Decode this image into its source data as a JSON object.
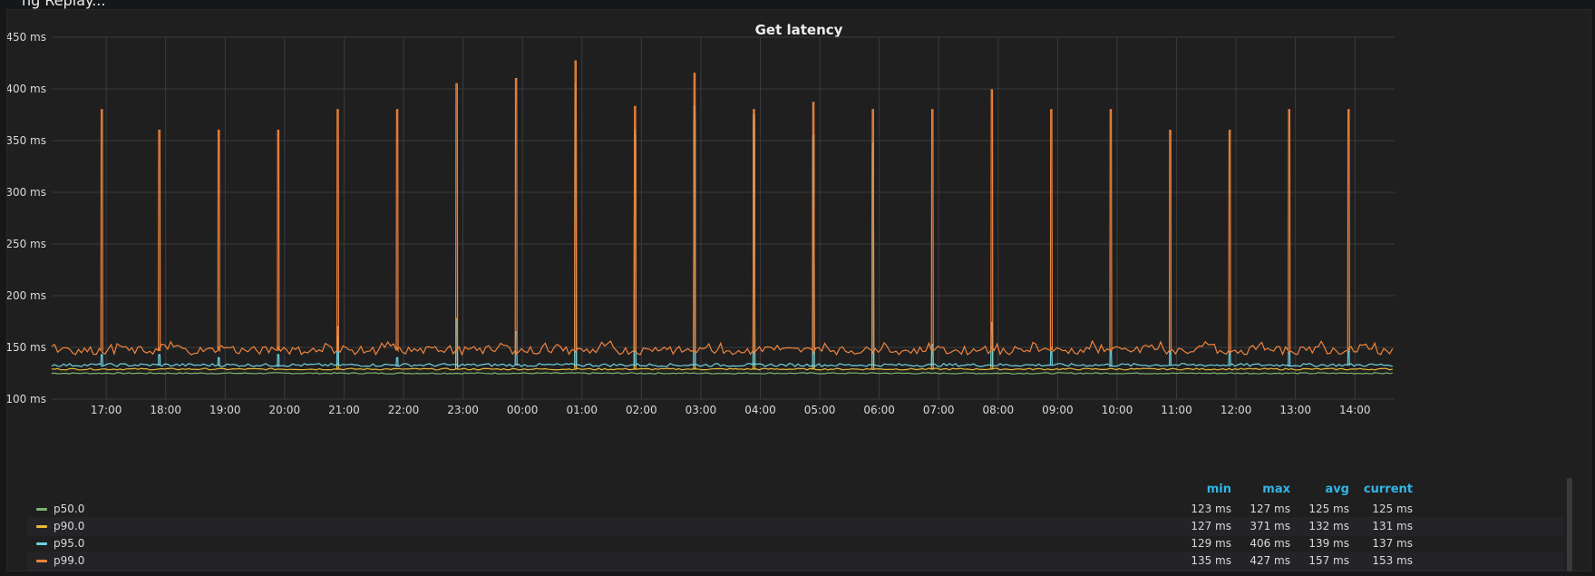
{
  "header": {
    "truncated_title": "ng Replay..."
  },
  "panel": {
    "title": "Get latency"
  },
  "chart_data": {
    "type": "line",
    "title": "Get latency",
    "ylabel": "",
    "xlabel": "",
    "ylim": [
      100,
      450
    ],
    "y_ticks": [
      "100 ms",
      "150 ms",
      "200 ms",
      "250 ms",
      "300 ms",
      "350 ms",
      "400 ms",
      "450 ms"
    ],
    "x_ticks": [
      "17:00",
      "18:00",
      "19:00",
      "20:00",
      "21:00",
      "22:00",
      "23:00",
      "00:00",
      "01:00",
      "02:00",
      "03:00",
      "04:00",
      "05:00",
      "06:00",
      "07:00",
      "08:00",
      "09:00",
      "10:00",
      "11:00",
      "12:00",
      "13:00",
      "14:00"
    ],
    "x_range": [
      "16:05",
      "14:40"
    ],
    "grid": true,
    "series": [
      {
        "name": "p50.0",
        "color": "#7eb26d",
        "baseline": 125
      },
      {
        "name": "p90.0",
        "color": "#eab839",
        "baseline": 129
      },
      {
        "name": "p95.0",
        "color": "#6ed0e0",
        "baseline": 133
      },
      {
        "name": "p99.0",
        "color": "#ef843c",
        "baseline": 147
      }
    ],
    "spikes": [
      {
        "time": "16:55",
        "p99": 380,
        "p95": 143
      },
      {
        "time": "17:53",
        "p99": 360,
        "p95": 143
      },
      {
        "time": "18:53",
        "p99": 360,
        "p95": 140
      },
      {
        "time": "19:53",
        "p99": 360,
        "p95": 143
      },
      {
        "time": "20:53",
        "p99": 380,
        "p95": 170,
        "p90": 160
      },
      {
        "time": "21:53",
        "p99": 380,
        "p95": 140
      },
      {
        "time": "22:53",
        "p99": 405,
        "p95": 175,
        "p90": 178
      },
      {
        "time": "23:53",
        "p99": 410,
        "p95": 165
      },
      {
        "time": "00:53",
        "p99": 427,
        "p95": 406,
        "p90": 371
      },
      {
        "time": "01:53",
        "p99": 383,
        "p95": 360,
        "p90": 355
      },
      {
        "time": "02:53",
        "p99": 415,
        "p95": 383,
        "p90": 371
      },
      {
        "time": "03:53",
        "p99": 380,
        "p95": 375,
        "p90": 370
      },
      {
        "time": "04:53",
        "p99": 387,
        "p95": 355,
        "p90": 350
      },
      {
        "time": "05:53",
        "p99": 380,
        "p95": 348,
        "p90": 345
      },
      {
        "time": "06:53",
        "p99": 380,
        "p95": 153,
        "p90": 148
      },
      {
        "time": "07:53",
        "p99": 399,
        "p95": 174,
        "p90": 172
      },
      {
        "time": "08:53",
        "p99": 380,
        "p95": 146
      },
      {
        "time": "09:53",
        "p99": 380,
        "p95": 146
      },
      {
        "time": "10:53",
        "p99": 360,
        "p95": 146
      },
      {
        "time": "11:53",
        "p99": 360,
        "p95": 146
      },
      {
        "time": "12:53",
        "p99": 380,
        "p95": 146
      },
      {
        "time": "13:53",
        "p99": 380,
        "p95": 146
      }
    ]
  },
  "legend": {
    "headers": {
      "min": "min",
      "max": "max",
      "avg": "avg",
      "current": "current"
    },
    "rows": [
      {
        "name": "p50.0",
        "color": "#7eb26d",
        "min": "123 ms",
        "max": "127 ms",
        "avg": "125 ms",
        "current": "125 ms"
      },
      {
        "name": "p90.0",
        "color": "#eab839",
        "min": "127 ms",
        "max": "371 ms",
        "avg": "132 ms",
        "current": "131 ms"
      },
      {
        "name": "p95.0",
        "color": "#6ed0e0",
        "min": "129 ms",
        "max": "406 ms",
        "avg": "139 ms",
        "current": "137 ms"
      },
      {
        "name": "p99.0",
        "color": "#ef843c",
        "min": "135 ms",
        "max": "427 ms",
        "avg": "157 ms",
        "current": "153 ms"
      }
    ]
  }
}
